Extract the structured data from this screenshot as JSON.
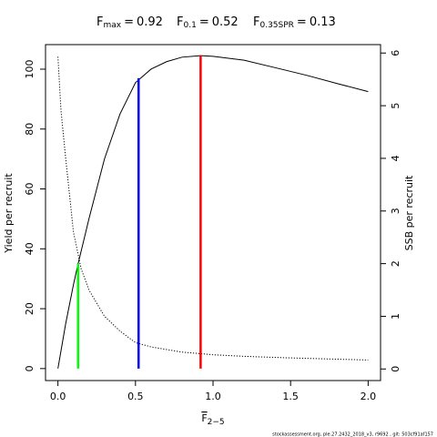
{
  "chart_data": {
    "type": "line",
    "title_terms": [
      {
        "symbol": "F",
        "subscript": "max",
        "equals": "=",
        "value": 0.92,
        "color": "#ff0000",
        "yield": 104.5
      },
      {
        "symbol": "F",
        "subscript": "0.1",
        "equals": "=",
        "value": 0.52,
        "color": "#0000ff",
        "yield": 97
      },
      {
        "symbol": "F",
        "subscript": "0.35SPR",
        "equals": "=",
        "value": 0.13,
        "color": "#00ff00",
        "yield": 35
      }
    ],
    "xlabel": {
      "symbol": "F",
      "subscript": "2−5"
    },
    "ylabel": "Yield per recruit",
    "y2label": "SSB per recruit",
    "footer": "stockassessment.org, ple.27.2432_2018_v3, r9692 , git: 503cf91af157",
    "xlim": [
      -0.08,
      2.08
    ],
    "ylim": [
      -4,
      108.2
    ],
    "y2lim": [
      -0.22,
      6.16
    ],
    "xticks": [
      {
        "value": 0,
        "label": "0.0"
      },
      0.5,
      {
        "value": 1,
        "label": "1.0"
      },
      1.5,
      {
        "value": 2,
        "label": "2.0"
      }
    ],
    "yticks": [
      0,
      20,
      40,
      60,
      80,
      100
    ],
    "y2ticks": [
      0,
      1,
      2,
      3,
      4,
      5,
      6
    ],
    "series": [
      {
        "name": "Yield per recruit",
        "color": "#000000",
        "dash": "solid",
        "x": [
          0,
          0.05,
          0.1,
          0.13,
          0.2,
          0.3,
          0.4,
          0.5,
          0.6,
          0.7,
          0.8,
          0.92,
          1.0,
          1.2,
          1.4,
          1.6,
          1.8,
          2.0
        ],
        "y": [
          0,
          15,
          28,
          35,
          50,
          70,
          85,
          95.5,
          100,
          102.5,
          104,
          104.5,
          104.3,
          103,
          100.5,
          98,
          95.2,
          92.5
        ]
      },
      {
        "name": "SSB per recruit",
        "color": "#000000",
        "dash": "dotted",
        "axis": "y2",
        "x": [
          0,
          0.02,
          0.05,
          0.1,
          0.15,
          0.2,
          0.3,
          0.4,
          0.5,
          0.6,
          0.8,
          1.0,
          1.2,
          1.5,
          2.0
        ],
        "y": [
          5.93,
          4.9,
          4.0,
          2.6,
          1.9,
          1.5,
          1.0,
          0.72,
          0.5,
          0.42,
          0.32,
          0.27,
          0.24,
          0.21,
          0.17
        ]
      }
    ]
  }
}
